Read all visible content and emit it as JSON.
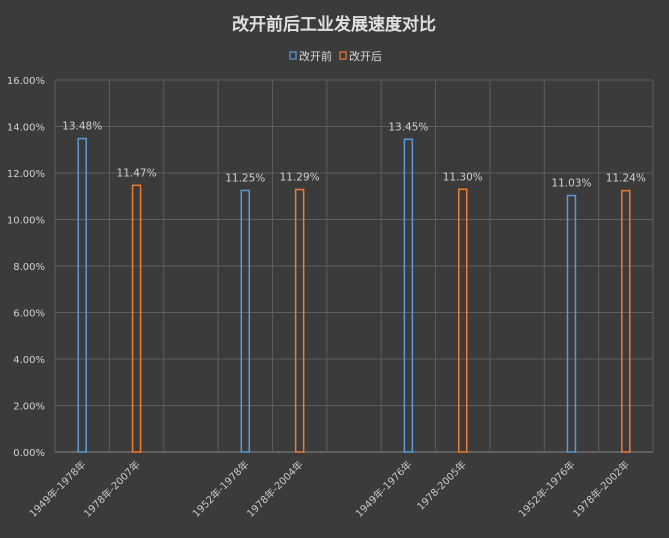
{
  "chart_data": {
    "type": "bar",
    "title": "改开前后工业发展速度对比",
    "legend_position": "top",
    "grid": true,
    "ylim": [
      0,
      0.16
    ],
    "yticks": [
      "0.00%",
      "2.00%",
      "4.00%",
      "6.00%",
      "8.00%",
      "10.00%",
      "12.00%",
      "14.00%",
      "16.00%"
    ],
    "categories": [
      "1949年-1978年",
      "1978年-2007年",
      "",
      "1952年-1978年",
      "1978年-2004年",
      "",
      "1949年-1976年",
      "1978-2005年",
      "",
      "1952年-1976年",
      "1978年-2002年"
    ],
    "series": [
      {
        "name": "改开前",
        "color": "#5b9bd5",
        "values": [
          0.1348,
          null,
          null,
          0.1125,
          null,
          null,
          0.1345,
          null,
          null,
          0.1103,
          null
        ],
        "labels": [
          "13.48%",
          null,
          null,
          "11.25%",
          null,
          null,
          "13.45%",
          null,
          null,
          "11.03%",
          null
        ]
      },
      {
        "name": "改开后",
        "color": "#ed7d31",
        "values": [
          null,
          0.1147,
          null,
          null,
          0.1129,
          null,
          null,
          0.113,
          null,
          null,
          0.1124
        ],
        "labels": [
          null,
          "11.47%",
          null,
          null,
          "11.29%",
          null,
          null,
          "11.30%",
          null,
          null,
          "11.24%"
        ]
      }
    ]
  }
}
